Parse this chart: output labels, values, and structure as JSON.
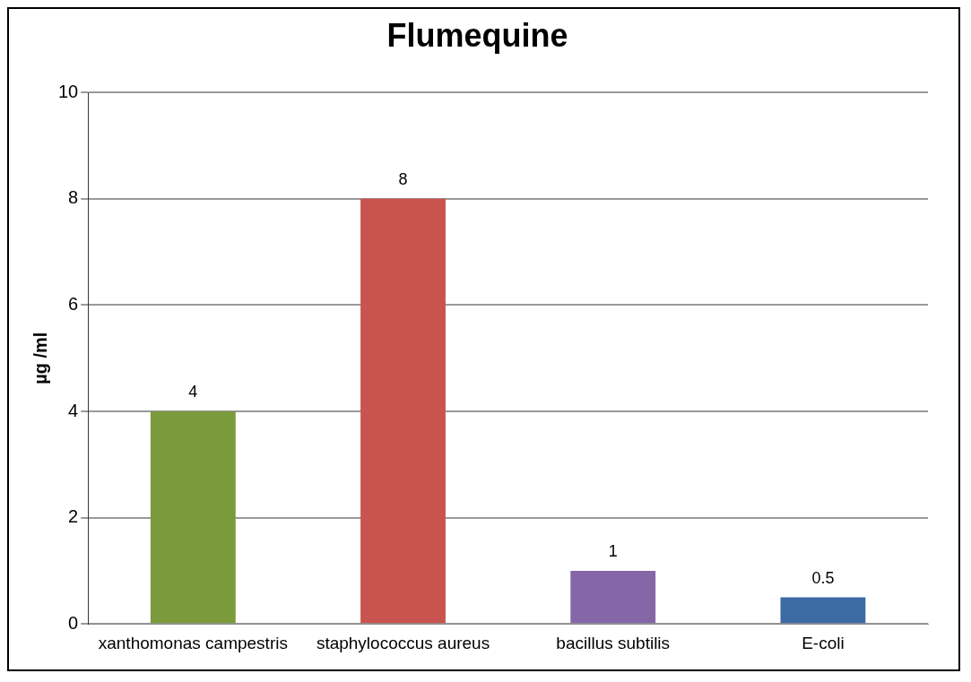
{
  "chart_data": {
    "type": "bar",
    "title": "Flumequine",
    "ylabel": "µg /ml",
    "categories": [
      "xanthomonas campestris",
      "staphylococcus aureus",
      "bacillus subtilis",
      "E-coli"
    ],
    "values": [
      4,
      8,
      1,
      0.5
    ],
    "colors": [
      "#7a9a3c",
      "#c9534f",
      "#8567a8",
      "#3d6aa3"
    ],
    "ylim": [
      0,
      10
    ],
    "yticks": [
      0,
      2,
      4,
      6,
      8,
      10
    ],
    "grid": "y",
    "legend": false,
    "data_labels": true
  }
}
